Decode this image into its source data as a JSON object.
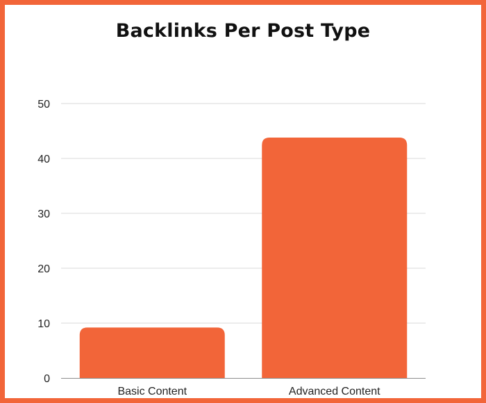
{
  "colors": {
    "accent": "#f26539",
    "background": "#ffffff",
    "grid": "#d9d9d9",
    "text": "#222222"
  },
  "chart_data": {
    "type": "bar",
    "title": "Backlinks Per Post Type",
    "xlabel": "",
    "ylabel": "",
    "categories": [
      "Basic Content",
      "Advanced Content"
    ],
    "values": [
      9.2,
      43.8
    ],
    "ylim": [
      0,
      50
    ],
    "yticks": [
      0,
      10,
      20,
      30,
      40,
      50
    ],
    "grid": true,
    "legend": "none"
  }
}
